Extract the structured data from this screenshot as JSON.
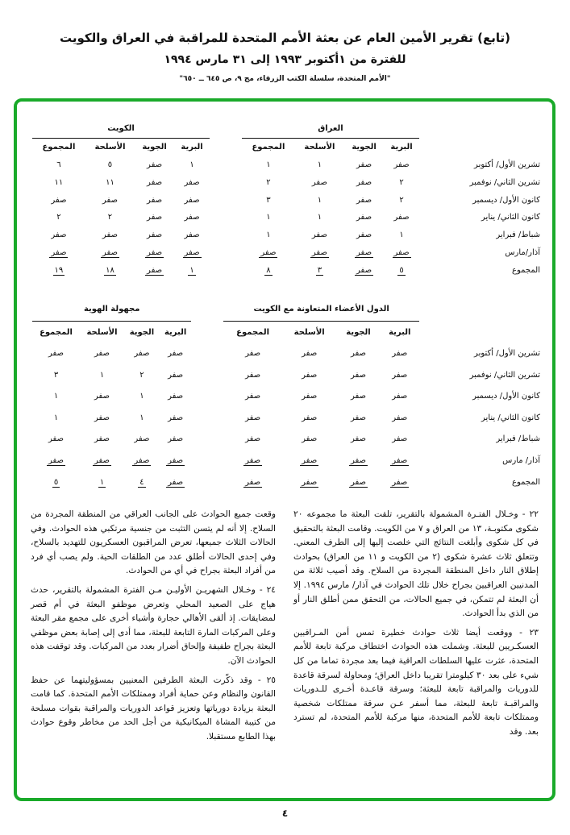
{
  "header": {
    "title": "(تابع) تقرير الأمين العام عن بعثة الأمم المتحدة للمراقبة في العراق والكويت",
    "subtitle": "للفترة من ١أكتوبر ١٩٩٣ إلى ٣١ مارس ١٩٩٤",
    "source": "\"الأمم المتحدة، سلسلة الكتب الزرقاء، مج ٩، ص ٦٤٥ ــ ٦٥٠\""
  },
  "frame_color": "#1aaa2a",
  "table1": {
    "groups": [
      "العراق",
      "الكويت"
    ],
    "columns": [
      "البرية",
      "الجوية",
      "الأسلحة",
      "المجموع"
    ],
    "rows": [
      {
        "label": "تشرين الأول/ أكتوبر",
        "a": [
          "صفر",
          "صفر",
          "١",
          "١"
        ],
        "b": [
          "١",
          "صفر",
          "٥",
          "٦"
        ]
      },
      {
        "label": "تشرين الثاني/ نوفمبر",
        "a": [
          "٢",
          "صفر",
          "صفر",
          "٢"
        ],
        "b": [
          "صفر",
          "صفر",
          "١١",
          "١١"
        ]
      },
      {
        "label": "كانون الأول/ ديسمبر",
        "a": [
          "٢",
          "صفر",
          "١",
          "٣"
        ],
        "b": [
          "صفر",
          "صفر",
          "صفر",
          "صفر"
        ]
      },
      {
        "label": "كانون الثاني/ يناير",
        "a": [
          "صفر",
          "صفر",
          "١",
          "١"
        ],
        "b": [
          "صفر",
          "صفر",
          "٢",
          "٢"
        ]
      },
      {
        "label": "شباط/ فبراير",
        "a": [
          "١",
          "صفر",
          "صفر",
          "١"
        ],
        "b": [
          "صفر",
          "صفر",
          "صفر",
          "صفر"
        ]
      },
      {
        "label": "آذار/مارس",
        "a": [
          "صفر",
          "صفر",
          "صفر",
          "صفر"
        ],
        "b": [
          "صفر",
          "صفر",
          "صفر",
          "صفر"
        ]
      },
      {
        "label": "المجموع",
        "a": [
          "٥",
          "صفر",
          "٣",
          "٨"
        ],
        "b": [
          "١",
          "صفر",
          "١٨",
          "١٩"
        ]
      }
    ]
  },
  "table2": {
    "groups": [
      "الدول الأعضاء المتعاونة مع الكويت",
      "مجهولة الهوية"
    ],
    "columns": [
      "البرية",
      "الجوية",
      "الأسلحة",
      "المجموع"
    ],
    "rows": [
      {
        "label": "تشرين الأول/ أكتوبر",
        "a": [
          "صفر",
          "صفر",
          "صفر",
          "صفر"
        ],
        "b": [
          "صفر",
          "صفر",
          "صفر",
          "صفر"
        ]
      },
      {
        "label": "تشرين الثاني/ نوفمبر",
        "a": [
          "صفر",
          "صفر",
          "صفر",
          "صفر"
        ],
        "b": [
          "صفر",
          "٢",
          "١",
          "٣"
        ]
      },
      {
        "label": "كانون الأول/ ديسمبر",
        "a": [
          "صفر",
          "صفر",
          "صفر",
          "صفر"
        ],
        "b": [
          "صفر",
          "١",
          "صفر",
          "١"
        ]
      },
      {
        "label": "كانون الثاني/ يناير",
        "a": [
          "صفر",
          "صفر",
          "صفر",
          "صفر"
        ],
        "b": [
          "صفر",
          "١",
          "صفر",
          "١"
        ]
      },
      {
        "label": "شباط/ فبراير",
        "a": [
          "صفر",
          "صفر",
          "صفر",
          "صفر"
        ],
        "b": [
          "صفر",
          "صفر",
          "صفر",
          "صفر"
        ]
      },
      {
        "label": "آذار/ مارس",
        "a": [
          "صفر",
          "صفر",
          "صفر",
          "صفر"
        ],
        "b": [
          "صفر",
          "صفر",
          "صفر",
          "صفر"
        ]
      },
      {
        "label": "المجموع",
        "a": [
          "صفر",
          "صفر",
          "صفر",
          "صفر"
        ],
        "b": [
          "صفر",
          "٤",
          "١",
          "٥"
        ]
      }
    ]
  },
  "paragraphs_right": [
    "٢٢ -     وخـلال الفتـرة المشمولة بالتقرير، تلقت البعثة ما مجموعه ٢٠ شكوى مكتوبـة، ١٣ من العراق و ٧ من الكويت. وقامت البعثة بالتحقيق في كل شكوى وأبلغت النتائج التي خلصت إليها إلى الطرف المعني. وتتعلق ثلاث عشرة شكوى (٢ من الكويت و ١١ من العراق) بحوادث إطلاق النار داخل المنطقة المجردة من السلاح. وقد أصيب ثلاثة من المدنيين العراقيين بجراح خلال تلك الحوادث في آذار/ مارس ١٩٩٤. إلا أن البعثة لم تتمكن، في جميع الحالات، من التحقق ممن أطلق النار أو من الذي بدأ الحوادث.",
    "٢٣ -     ووقعت أيضا ثلاث حوادث خطيرة تمس أمن المـراقبين العسكـريين للبعثة. وشملت هذه الحوادث اختطاف مركبة تابعة للأمم المتحدة، عثرت عليها السلطات العراقية فيما بعد مجردة تماما من كل شيء على بعد ٣٠ كيلومترا تقريبا داخل العراق؛ ومحاولة لسرقة قاعدة للدوريات والمراقبة تابعة للبعثة؛ وسرقة قاعـدة أخـرى للـدوريات والمراقبـة تابعة للبعثة، مما أسفر عـن سرقة ممتلكات شخصية وممتلكات تابعة للأمم المتحدة، منها مركبة للأمم المتحدة، لم تسترد بعد. وقد"
  ],
  "paragraphs_left": [
    "وقعت جميع الحوادث على الجانب العراقي من المنطقة المجردة من السلاح. إلا أنه لم يتسن التثبت من جنسية مرتكبي هذه الحوادث. وفي الحالات الثلاث جميعها، تعرض المراقبون العسكريون للتهديد بالسلاح، وفي إحدى الحالات أطلق عدد من الطلقات الحية. ولم يصب أي فرد من أفراد البعثة بجراح في أي من الحوادث.",
    "٢٤ -     وخـلال الشهريـن الأوليـن مـن الفترة المشمولة بالتقرير، حدث هياج على الصعيد المحلي وتعرض موظفو البعثة في أم قصر لمضايقات. إذ ألقى الأهالي حجارة وأشياء أخرى على مجمع مقر البعثة وعلى المركبات المارة التابعة للبعثة، مما أدى إلى إصابة بعض موظفي البعثة بجراح طفيفة وإلحاق أضرار بعدد من المركبات. وقد توقفت هذه الحوادث الآن.",
    "٢٥ -     وقد ذكّرت البعثة الطرفين المعنيين بمسؤوليتهما عن حفظ القانون والنظام وعن حماية أفراد وممتلكات الأمم المتحدة. كما قامت البعثة بزيادة دورياتها وتعزيز قواعد الدوريات والمراقبة بقوات مسلحة من كتيبة المشاة الميكانيكية من أجل الحد من مخاطر وقوع حوادث بهذا الطابع مستقبلا."
  ],
  "page_number": "٤"
}
